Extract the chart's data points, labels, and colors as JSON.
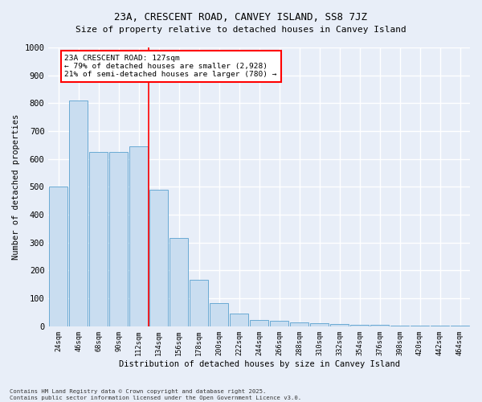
{
  "title": "23A, CRESCENT ROAD, CANVEY ISLAND, SS8 7JZ",
  "subtitle": "Size of property relative to detached houses in Canvey Island",
  "xlabel": "Distribution of detached houses by size in Canvey Island",
  "ylabel": "Number of detached properties",
  "categories": [
    "24sqm",
    "46sqm",
    "68sqm",
    "90sqm",
    "112sqm",
    "134sqm",
    "156sqm",
    "178sqm",
    "200sqm",
    "222sqm",
    "244sqm",
    "266sqm",
    "288sqm",
    "310sqm",
    "332sqm",
    "354sqm",
    "376sqm",
    "398sqm",
    "420sqm",
    "442sqm",
    "464sqm"
  ],
  "values": [
    500,
    810,
    625,
    625,
    645,
    490,
    315,
    165,
    82,
    45,
    22,
    18,
    12,
    10,
    8,
    5,
    5,
    3,
    2,
    2,
    3
  ],
  "bar_color": "#c9ddf0",
  "bar_edge_color": "#6aaad4",
  "vline_color": "red",
  "vline_pos": 4.5,
  "annotation_text": "23A CRESCENT ROAD: 127sqm\n← 79% of detached houses are smaller (2,928)\n21% of semi-detached houses are larger (780) →",
  "annotation_box_color": "white",
  "annotation_box_edge": "red",
  "ylim": [
    0,
    1000
  ],
  "yticks": [
    0,
    100,
    200,
    300,
    400,
    500,
    600,
    700,
    800,
    900,
    1000
  ],
  "background_color": "#e8eef8",
  "grid_color": "#ffffff",
  "footer": "Contains HM Land Registry data © Crown copyright and database right 2025.\nContains public sector information licensed under the Open Government Licence v3.0."
}
